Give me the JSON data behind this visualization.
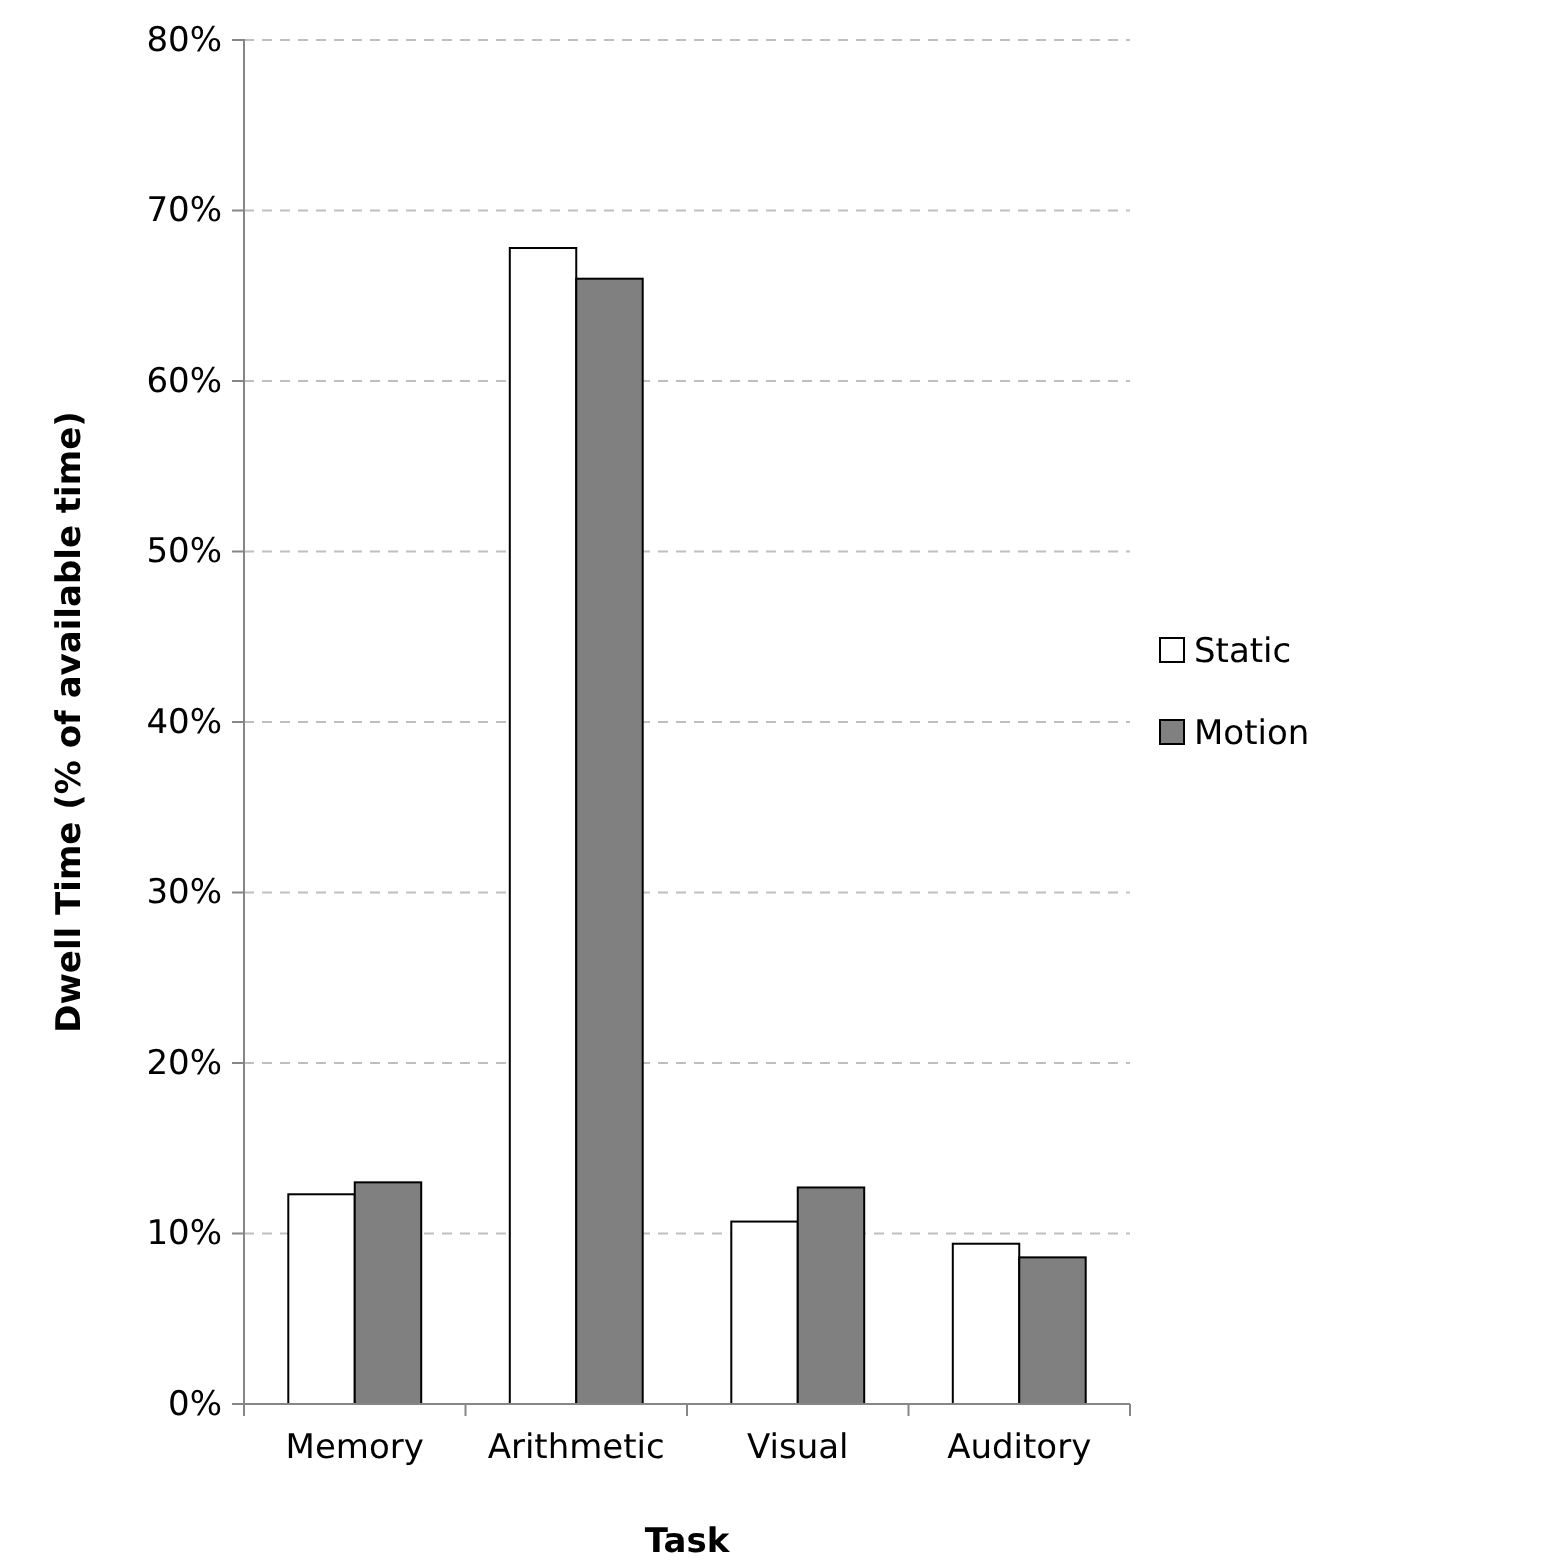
{
  "chart_data": {
    "type": "bar",
    "xlabel": "Task",
    "ylabel": "Dwell Time (% of available time)",
    "categories": [
      "Memory",
      "Arithmetic",
      "Visual",
      "Auditory"
    ],
    "series": [
      {
        "name": "Static",
        "color": "#ffffff",
        "values": [
          12.3,
          67.8,
          10.7,
          9.4
        ]
      },
      {
        "name": "Motion",
        "color": "#808080",
        "values": [
          13.0,
          66.0,
          12.7,
          8.6
        ]
      }
    ],
    "ylim": [
      0,
      80
    ],
    "yticks": [
      {
        "value": 0,
        "label": "0%"
      },
      {
        "value": 10,
        "label": "10%"
      },
      {
        "value": 20,
        "label": "20%"
      },
      {
        "value": 30,
        "label": "30%"
      },
      {
        "value": 40,
        "label": "40%"
      },
      {
        "value": 50,
        "label": "50%"
      },
      {
        "value": 60,
        "label": "60%"
      },
      {
        "value": 70,
        "label": "70%"
      },
      {
        "value": 80,
        "label": "80%"
      }
    ],
    "grid": "y",
    "legend": "right"
  }
}
